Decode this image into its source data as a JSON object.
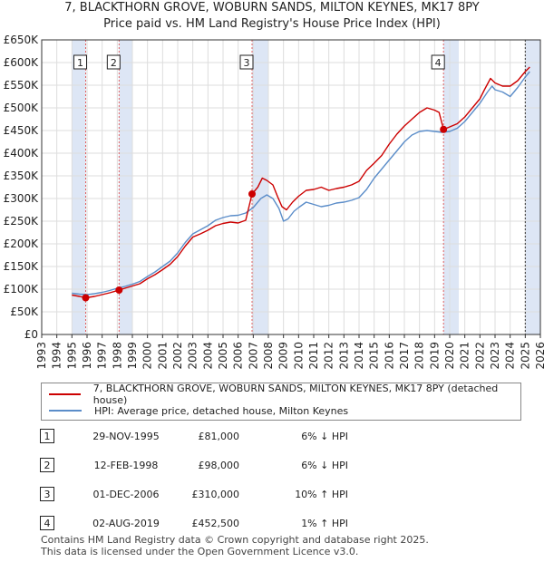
{
  "title_line1": "7, BLACKTHORN GROVE, WOBURN SANDS, MILTON KEYNES, MK17 8PY",
  "title_line2": "Price paid vs. HM Land Registry's House Price Index (HPI)",
  "colors": {
    "property": "#cc0000",
    "hpi": "#5b8dc9",
    "shade": "#dde6f5",
    "vline": "#e06060",
    "grid": "#dddddd"
  },
  "chart_data": {
    "type": "line",
    "title": "Price paid vs. HM Land Registry's House Price Index (HPI)",
    "xlim": [
      1993,
      2026
    ],
    "ylim": [
      0,
      650000
    ],
    "x_ticks": [
      "1993",
      "1994",
      "1995",
      "1996",
      "1997",
      "1998",
      "1999",
      "2000",
      "2001",
      "2002",
      "2003",
      "2004",
      "2005",
      "2006",
      "2007",
      "2008",
      "2009",
      "2010",
      "2011",
      "2012",
      "2013",
      "2014",
      "2015",
      "2016",
      "2017",
      "2018",
      "2019",
      "2020",
      "2021",
      "2022",
      "2023",
      "2024",
      "2025",
      "2026"
    ],
    "y_ticks": [
      {
        "value": 0,
        "label": "£0"
      },
      {
        "value": 50000,
        "label": "£50K"
      },
      {
        "value": 100000,
        "label": "£100K"
      },
      {
        "value": 150000,
        "label": "£150K"
      },
      {
        "value": 200000,
        "label": "£200K"
      },
      {
        "value": 250000,
        "label": "£250K"
      },
      {
        "value": 300000,
        "label": "£300K"
      },
      {
        "value": 350000,
        "label": "£350K"
      },
      {
        "value": 400000,
        "label": "£400K"
      },
      {
        "value": 450000,
        "label": "£450K"
      },
      {
        "value": 500000,
        "label": "£500K"
      },
      {
        "value": 550000,
        "label": "£550K"
      },
      {
        "value": 600000,
        "label": "£600K"
      },
      {
        "value": 650000,
        "label": "£650K"
      }
    ],
    "shaded_ranges": [
      [
        1995.0,
        1995.91
      ],
      [
        1998.12,
        1999.0
      ],
      [
        2006.92,
        2008.0
      ],
      [
        2019.59,
        2020.6
      ],
      [
        2025.0,
        2026.0
      ]
    ],
    "series": [
      {
        "name": "7, BLACKTHORN GROVE, WOBURN SANDS, MILTON KEYNES, MK17 8PY (detached house)",
        "color": "#cc0000",
        "points": [
          [
            1995.0,
            87000
          ],
          [
            1995.5,
            84000
          ],
          [
            1995.91,
            81000
          ],
          [
            1996.5,
            84000
          ],
          [
            1997.0,
            88000
          ],
          [
            1997.5,
            92000
          ],
          [
            1998.12,
            98000
          ],
          [
            1998.5,
            102000
          ],
          [
            1999.0,
            107000
          ],
          [
            1999.5,
            112000
          ],
          [
            2000.0,
            123000
          ],
          [
            2000.5,
            132000
          ],
          [
            2001.0,
            143000
          ],
          [
            2001.5,
            155000
          ],
          [
            2002.0,
            172000
          ],
          [
            2002.5,
            195000
          ],
          [
            2003.0,
            215000
          ],
          [
            2003.5,
            222000
          ],
          [
            2004.0,
            230000
          ],
          [
            2004.5,
            240000
          ],
          [
            2005.0,
            245000
          ],
          [
            2005.5,
            248000
          ],
          [
            2006.0,
            246000
          ],
          [
            2006.5,
            252000
          ],
          [
            2006.92,
            310000
          ],
          [
            2007.3,
            325000
          ],
          [
            2007.6,
            345000
          ],
          [
            2007.9,
            340000
          ],
          [
            2008.3,
            330000
          ],
          [
            2008.6,
            305000
          ],
          [
            2008.9,
            282000
          ],
          [
            2009.2,
            275000
          ],
          [
            2009.6,
            292000
          ],
          [
            2010.0,
            305000
          ],
          [
            2010.5,
            318000
          ],
          [
            2011.0,
            320000
          ],
          [
            2011.5,
            325000
          ],
          [
            2012.0,
            318000
          ],
          [
            2012.5,
            322000
          ],
          [
            2013.0,
            325000
          ],
          [
            2013.5,
            330000
          ],
          [
            2014.0,
            338000
          ],
          [
            2014.5,
            362000
          ],
          [
            2015.0,
            378000
          ],
          [
            2015.5,
            395000
          ],
          [
            2016.0,
            420000
          ],
          [
            2016.5,
            442000
          ],
          [
            2017.0,
            460000
          ],
          [
            2017.5,
            475000
          ],
          [
            2018.0,
            490000
          ],
          [
            2018.5,
            500000
          ],
          [
            2019.0,
            495000
          ],
          [
            2019.3,
            490000
          ],
          [
            2019.59,
            452500
          ],
          [
            2020.0,
            458000
          ],
          [
            2020.5,
            465000
          ],
          [
            2021.0,
            480000
          ],
          [
            2021.5,
            500000
          ],
          [
            2022.0,
            520000
          ],
          [
            2022.3,
            540000
          ],
          [
            2022.7,
            565000
          ],
          [
            2023.0,
            555000
          ],
          [
            2023.5,
            548000
          ],
          [
            2024.0,
            548000
          ],
          [
            2024.5,
            560000
          ],
          [
            2025.0,
            580000
          ],
          [
            2025.3,
            590000
          ]
        ]
      },
      {
        "name": "HPI: Average price, detached house, Milton Keynes",
        "color": "#5b8dc9",
        "points": [
          [
            1995.0,
            91000
          ],
          [
            1995.5,
            89000
          ],
          [
            1996.0,
            88000
          ],
          [
            1996.5,
            90000
          ],
          [
            1997.0,
            93000
          ],
          [
            1997.5,
            97000
          ],
          [
            1998.0,
            102000
          ],
          [
            1998.5,
            106000
          ],
          [
            1999.0,
            111000
          ],
          [
            1999.5,
            117000
          ],
          [
            2000.0,
            128000
          ],
          [
            2000.5,
            138000
          ],
          [
            2001.0,
            150000
          ],
          [
            2001.5,
            162000
          ],
          [
            2002.0,
            180000
          ],
          [
            2002.5,
            203000
          ],
          [
            2003.0,
            222000
          ],
          [
            2003.5,
            231000
          ],
          [
            2004.0,
            240000
          ],
          [
            2004.5,
            252000
          ],
          [
            2005.0,
            258000
          ],
          [
            2005.5,
            262000
          ],
          [
            2006.0,
            263000
          ],
          [
            2006.5,
            268000
          ],
          [
            2007.0,
            280000
          ],
          [
            2007.5,
            300000
          ],
          [
            2007.9,
            308000
          ],
          [
            2008.3,
            300000
          ],
          [
            2008.7,
            278000
          ],
          [
            2009.0,
            250000
          ],
          [
            2009.3,
            255000
          ],
          [
            2009.7,
            272000
          ],
          [
            2010.0,
            280000
          ],
          [
            2010.5,
            292000
          ],
          [
            2011.0,
            287000
          ],
          [
            2011.5,
            282000
          ],
          [
            2012.0,
            285000
          ],
          [
            2012.5,
            290000
          ],
          [
            2013.0,
            292000
          ],
          [
            2013.5,
            296000
          ],
          [
            2014.0,
            302000
          ],
          [
            2014.5,
            320000
          ],
          [
            2015.0,
            345000
          ],
          [
            2015.5,
            365000
          ],
          [
            2016.0,
            385000
          ],
          [
            2016.5,
            405000
          ],
          [
            2017.0,
            425000
          ],
          [
            2017.5,
            440000
          ],
          [
            2018.0,
            448000
          ],
          [
            2018.5,
            450000
          ],
          [
            2019.0,
            448000
          ],
          [
            2019.5,
            446000
          ],
          [
            2020.0,
            448000
          ],
          [
            2020.5,
            455000
          ],
          [
            2021.0,
            470000
          ],
          [
            2021.5,
            490000
          ],
          [
            2022.0,
            510000
          ],
          [
            2022.5,
            535000
          ],
          [
            2022.8,
            548000
          ],
          [
            2023.0,
            540000
          ],
          [
            2023.5,
            535000
          ],
          [
            2024.0,
            525000
          ],
          [
            2024.5,
            545000
          ],
          [
            2025.0,
            568000
          ],
          [
            2025.3,
            580000
          ]
        ]
      }
    ],
    "sale_points": [
      {
        "label": "1",
        "x": 1995.91,
        "y": 81000
      },
      {
        "label": "2",
        "x": 1998.12,
        "y": 98000
      },
      {
        "label": "3",
        "x": 2006.92,
        "y": 310000
      },
      {
        "label": "4",
        "x": 2019.59,
        "y": 452500
      }
    ]
  },
  "legend": {
    "property_label": "7, BLACKTHORN GROVE, WOBURN SANDS, MILTON KEYNES, MK17 8PY (detached house)",
    "hpi_label": "HPI: Average price, detached house, Milton Keynes"
  },
  "sales": [
    {
      "num": "1",
      "date": "29-NOV-1995",
      "price": "£81,000",
      "hpi": "6% ↓ HPI"
    },
    {
      "num": "2",
      "date": "12-FEB-1998",
      "price": "£98,000",
      "hpi": "6% ↓ HPI"
    },
    {
      "num": "3",
      "date": "01-DEC-2006",
      "price": "£310,000",
      "hpi": "10% ↑ HPI"
    },
    {
      "num": "4",
      "date": "02-AUG-2019",
      "price": "£452,500",
      "hpi": "1% ↑ HPI"
    }
  ],
  "footer_line1": "Contains HM Land Registry data © Crown copyright and database right 2025.",
  "footer_line2": "This data is licensed under the Open Government Licence v3.0."
}
